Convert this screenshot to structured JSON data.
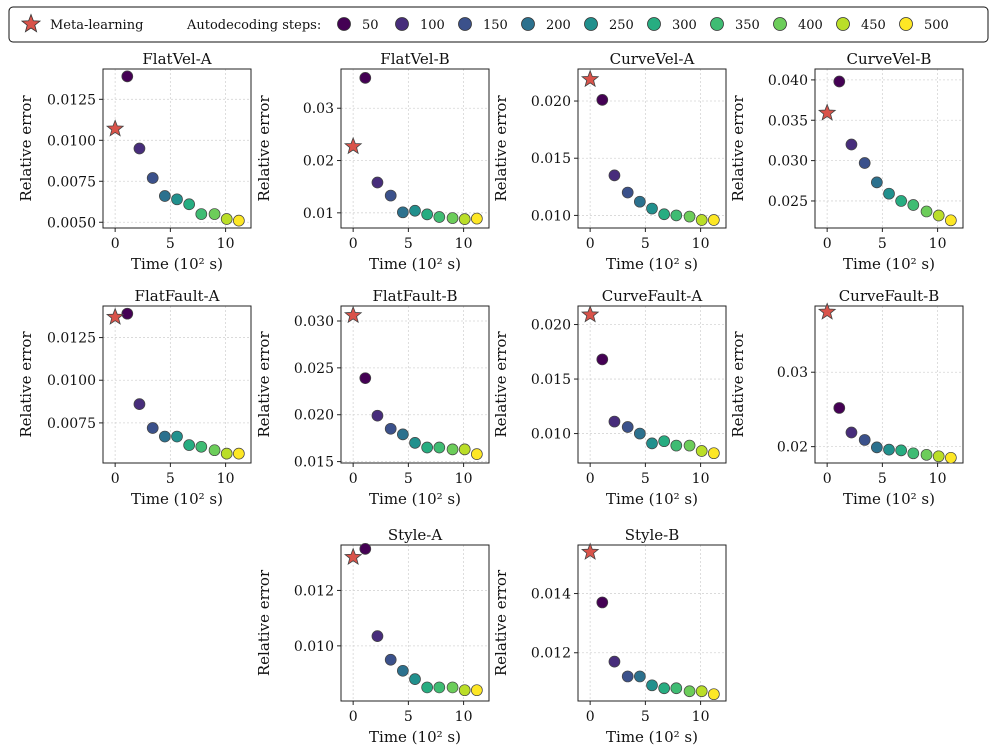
{
  "legend": {
    "meta_label": "Meta-learning",
    "steps_title": "Autodecoding steps:",
    "meta_color": "#d9534a",
    "steps": [
      {
        "label": "50",
        "color": "#440154"
      },
      {
        "label": "100",
        "color": "#472d7b"
      },
      {
        "label": "150",
        "color": "#3b518b"
      },
      {
        "label": "200",
        "color": "#2c718e"
      },
      {
        "label": "250",
        "color": "#21908d"
      },
      {
        "label": "300",
        "color": "#27ad81"
      },
      {
        "label": "350",
        "color": "#3fbc73"
      },
      {
        "label": "400",
        "color": "#6ccd5a"
      },
      {
        "label": "450",
        "color": "#bade28"
      },
      {
        "label": "500",
        "color": "#fde725"
      }
    ]
  },
  "chart_data": [
    {
      "type": "scatter",
      "title": "FlatVel-A",
      "xlabel": "Time (10² s)",
      "ylabel": "Relative error",
      "xlim": [
        -1.1,
        12.3
      ],
      "ylim": [
        0.00465,
        0.01435
      ],
      "xticks": [
        0,
        5,
        10
      ],
      "xtick_labels": [
        "0",
        "5",
        "10"
      ],
      "yticks": [
        0.005,
        0.0075,
        0.01,
        0.0125
      ],
      "ytick_labels": [
        "0.0050",
        "0.0075",
        "0.0100",
        "0.0125"
      ],
      "meta": {
        "x": 0,
        "y": 0.0107
      },
      "points": [
        {
          "x": 1.1,
          "y": 0.0139
        },
        {
          "x": 2.2,
          "y": 0.0095
        },
        {
          "x": 3.4,
          "y": 0.0077
        },
        {
          "x": 4.5,
          "y": 0.0066
        },
        {
          "x": 5.6,
          "y": 0.0064
        },
        {
          "x": 6.7,
          "y": 0.0061
        },
        {
          "x": 7.8,
          "y": 0.0055
        },
        {
          "x": 9.0,
          "y": 0.0055
        },
        {
          "x": 10.1,
          "y": 0.0052
        },
        {
          "x": 11.2,
          "y": 0.0051
        }
      ]
    },
    {
      "type": "scatter",
      "title": "FlatVel-B",
      "xlabel": "Time (10² s)",
      "ylabel": "Relative error",
      "xlim": [
        -1.1,
        12.3
      ],
      "ylim": [
        0.0071,
        0.0375
      ],
      "xticks": [
        0,
        5,
        10
      ],
      "xtick_labels": [
        "0",
        "5",
        "10"
      ],
      "yticks": [
        0.01,
        0.02,
        0.03
      ],
      "ytick_labels": [
        "0.01",
        "0.02",
        "0.03"
      ],
      "meta": {
        "x": 0,
        "y": 0.0227
      },
      "points": [
        {
          "x": 1.1,
          "y": 0.0358
        },
        {
          "x": 2.2,
          "y": 0.0158
        },
        {
          "x": 3.4,
          "y": 0.0133
        },
        {
          "x": 4.5,
          "y": 0.0101
        },
        {
          "x": 5.6,
          "y": 0.0104
        },
        {
          "x": 6.7,
          "y": 0.0097
        },
        {
          "x": 7.8,
          "y": 0.0092
        },
        {
          "x": 9.0,
          "y": 0.009
        },
        {
          "x": 10.1,
          "y": 0.0088
        },
        {
          "x": 11.2,
          "y": 0.0089
        }
      ]
    },
    {
      "type": "scatter",
      "title": "CurveVel-A",
      "xlabel": "Time (10² s)",
      "ylabel": "Relative error",
      "xlim": [
        -1.1,
        12.3
      ],
      "ylim": [
        0.0089,
        0.0228
      ],
      "xticks": [
        0,
        5,
        10
      ],
      "xtick_labels": [
        "0",
        "5",
        "10"
      ],
      "yticks": [
        0.01,
        0.015,
        0.02
      ],
      "ytick_labels": [
        "0.010",
        "0.015",
        "0.020"
      ],
      "meta": {
        "x": 0,
        "y": 0.0219
      },
      "points": [
        {
          "x": 1.1,
          "y": 0.0201
        },
        {
          "x": 2.2,
          "y": 0.0135
        },
        {
          "x": 3.4,
          "y": 0.012
        },
        {
          "x": 4.5,
          "y": 0.0112
        },
        {
          "x": 5.6,
          "y": 0.0106
        },
        {
          "x": 6.7,
          "y": 0.0101
        },
        {
          "x": 7.8,
          "y": 0.01
        },
        {
          "x": 9.0,
          "y": 0.0099
        },
        {
          "x": 10.1,
          "y": 0.0096
        },
        {
          "x": 11.2,
          "y": 0.0096
        }
      ]
    },
    {
      "type": "scatter",
      "title": "CurveVel-B",
      "xlabel": "Time (10² s)",
      "ylabel": "Relative error",
      "xlim": [
        -1.1,
        12.3
      ],
      "ylim": [
        0.02165,
        0.04135
      ],
      "xticks": [
        0,
        5,
        10
      ],
      "xtick_labels": [
        "0",
        "5",
        "10"
      ],
      "yticks": [
        0.025,
        0.03,
        0.035,
        0.04
      ],
      "ytick_labels": [
        "0.025",
        "0.030",
        "0.035",
        "0.040"
      ],
      "meta": {
        "x": 0,
        "y": 0.0359
      },
      "points": [
        {
          "x": 1.1,
          "y": 0.0398
        },
        {
          "x": 2.2,
          "y": 0.032
        },
        {
          "x": 3.4,
          "y": 0.0297
        },
        {
          "x": 4.5,
          "y": 0.0273
        },
        {
          "x": 5.6,
          "y": 0.0259
        },
        {
          "x": 6.7,
          "y": 0.025
        },
        {
          "x": 7.8,
          "y": 0.0245
        },
        {
          "x": 9.0,
          "y": 0.0237
        },
        {
          "x": 10.1,
          "y": 0.0232
        },
        {
          "x": 11.2,
          "y": 0.0226
        }
      ]
    },
    {
      "type": "scatter",
      "title": "FlatFault-A",
      "xlabel": "Time (10² s)",
      "ylabel": "Relative error",
      "xlim": [
        -1.1,
        12.3
      ],
      "ylim": [
        0.00515,
        0.01435
      ],
      "xticks": [
        0,
        5,
        10
      ],
      "xtick_labels": [
        "0",
        "5",
        "10"
      ],
      "yticks": [
        0.0075,
        0.01,
        0.0125
      ],
      "ytick_labels": [
        "0.0075",
        "0.0100",
        "0.0125"
      ],
      "meta": {
        "x": 0,
        "y": 0.0137
      },
      "points": [
        {
          "x": 1.1,
          "y": 0.0139
        },
        {
          "x": 2.2,
          "y": 0.0086
        },
        {
          "x": 3.4,
          "y": 0.0072
        },
        {
          "x": 4.5,
          "y": 0.0067
        },
        {
          "x": 5.6,
          "y": 0.0067
        },
        {
          "x": 6.7,
          "y": 0.0062
        },
        {
          "x": 7.8,
          "y": 0.0061
        },
        {
          "x": 9.0,
          "y": 0.0059
        },
        {
          "x": 10.1,
          "y": 0.0057
        },
        {
          "x": 11.2,
          "y": 0.0057
        }
      ]
    },
    {
      "type": "scatter",
      "title": "FlatFault-B",
      "xlabel": "Time (10² s)",
      "ylabel": "Relative error",
      "xlim": [
        -1.1,
        12.3
      ],
      "ylim": [
        0.01485,
        0.0316
      ],
      "xticks": [
        0,
        5,
        10
      ],
      "xtick_labels": [
        "0",
        "5",
        "10"
      ],
      "yticks": [
        0.015,
        0.02,
        0.025,
        0.03
      ],
      "ytick_labels": [
        "0.015",
        "0.020",
        "0.025",
        "0.030"
      ],
      "meta": {
        "x": 0,
        "y": 0.0306
      },
      "points": [
        {
          "x": 1.1,
          "y": 0.0239
        },
        {
          "x": 2.2,
          "y": 0.0199
        },
        {
          "x": 3.4,
          "y": 0.0185
        },
        {
          "x": 4.5,
          "y": 0.0179
        },
        {
          "x": 5.6,
          "y": 0.017
        },
        {
          "x": 6.7,
          "y": 0.0165
        },
        {
          "x": 7.8,
          "y": 0.0165
        },
        {
          "x": 9.0,
          "y": 0.0163
        },
        {
          "x": 10.1,
          "y": 0.0163
        },
        {
          "x": 11.2,
          "y": 0.0158
        }
      ]
    },
    {
      "type": "scatter",
      "title": "CurveFault-A",
      "xlabel": "Time (10² s)",
      "ylabel": "Relative error",
      "xlim": [
        -1.1,
        12.3
      ],
      "ylim": [
        0.0073,
        0.0217
      ],
      "xticks": [
        0,
        5,
        10
      ],
      "xtick_labels": [
        "0",
        "5",
        "10"
      ],
      "yticks": [
        0.01,
        0.015,
        0.02
      ],
      "ytick_labels": [
        "0.010",
        "0.015",
        "0.020"
      ],
      "meta": {
        "x": 0,
        "y": 0.0209
      },
      "points": [
        {
          "x": 1.1,
          "y": 0.0168
        },
        {
          "x": 2.2,
          "y": 0.0111
        },
        {
          "x": 3.4,
          "y": 0.0106
        },
        {
          "x": 4.5,
          "y": 0.01
        },
        {
          "x": 5.6,
          "y": 0.0091
        },
        {
          "x": 6.7,
          "y": 0.0093
        },
        {
          "x": 7.8,
          "y": 0.0089
        },
        {
          "x": 9.0,
          "y": 0.0089
        },
        {
          "x": 10.1,
          "y": 0.0084
        },
        {
          "x": 11.2,
          "y": 0.0082
        }
      ]
    },
    {
      "type": "scatter",
      "title": "CurveFault-B",
      "xlabel": "Time (10² s)",
      "ylabel": "Relative error",
      "xlim": [
        -1.1,
        12.3
      ],
      "ylim": [
        0.0178,
        0.0389
      ],
      "xticks": [
        0,
        5,
        10
      ],
      "xtick_labels": [
        "0",
        "5",
        "10"
      ],
      "yticks": [
        0.02,
        0.03
      ],
      "ytick_labels": [
        "0.02",
        "0.03"
      ],
      "meta": {
        "x": 0,
        "y": 0.0381
      },
      "points": [
        {
          "x": 1.1,
          "y": 0.0252
        },
        {
          "x": 2.2,
          "y": 0.0219
        },
        {
          "x": 3.4,
          "y": 0.0209
        },
        {
          "x": 4.5,
          "y": 0.0199
        },
        {
          "x": 5.6,
          "y": 0.0196
        },
        {
          "x": 6.7,
          "y": 0.0195
        },
        {
          "x": 7.8,
          "y": 0.0191
        },
        {
          "x": 9.0,
          "y": 0.0189
        },
        {
          "x": 10.1,
          "y": 0.0187
        },
        {
          "x": 11.2,
          "y": 0.0185
        }
      ]
    },
    {
      "type": "scatter",
      "title": "Style-A",
      "xlabel": "Time (10² s)",
      "ylabel": "Relative error",
      "xlim": [
        -1.1,
        12.3
      ],
      "ylim": [
        0.00801,
        0.01364
      ],
      "xticks": [
        0,
        5,
        10
      ],
      "xtick_labels": [
        "0",
        "5",
        "10"
      ],
      "yticks": [
        0.01,
        0.012
      ],
      "ytick_labels": [
        "0.010",
        "0.012"
      ],
      "meta": {
        "x": 0,
        "y": 0.0132
      },
      "points": [
        {
          "x": 1.1,
          "y": 0.0135
        },
        {
          "x": 2.2,
          "y": 0.01035
        },
        {
          "x": 3.4,
          "y": 0.0095
        },
        {
          "x": 4.5,
          "y": 0.0091
        },
        {
          "x": 5.6,
          "y": 0.0088
        },
        {
          "x": 6.7,
          "y": 0.0085
        },
        {
          "x": 7.8,
          "y": 0.0085
        },
        {
          "x": 9.0,
          "y": 0.0085
        },
        {
          "x": 10.1,
          "y": 0.0084
        },
        {
          "x": 11.2,
          "y": 0.0084
        }
      ]
    },
    {
      "type": "scatter",
      "title": "Style-B",
      "xlabel": "Time (10² s)",
      "ylabel": "Relative error",
      "xlim": [
        -1.1,
        12.3
      ],
      "ylim": [
        0.01037,
        0.01564
      ],
      "xticks": [
        0,
        5,
        10
      ],
      "xtick_labels": [
        "0",
        "5",
        "10"
      ],
      "yticks": [
        0.012,
        0.014
      ],
      "ytick_labels": [
        "0.012",
        "0.014"
      ],
      "meta": {
        "x": 0,
        "y": 0.0154
      },
      "points": [
        {
          "x": 1.1,
          "y": 0.0137
        },
        {
          "x": 2.2,
          "y": 0.0117
        },
        {
          "x": 3.4,
          "y": 0.0112
        },
        {
          "x": 4.5,
          "y": 0.0112
        },
        {
          "x": 5.6,
          "y": 0.0109
        },
        {
          "x": 6.7,
          "y": 0.0108
        },
        {
          "x": 7.8,
          "y": 0.0108
        },
        {
          "x": 9.0,
          "y": 0.0107
        },
        {
          "x": 10.1,
          "y": 0.0107
        },
        {
          "x": 11.2,
          "y": 0.0106
        }
      ]
    }
  ]
}
